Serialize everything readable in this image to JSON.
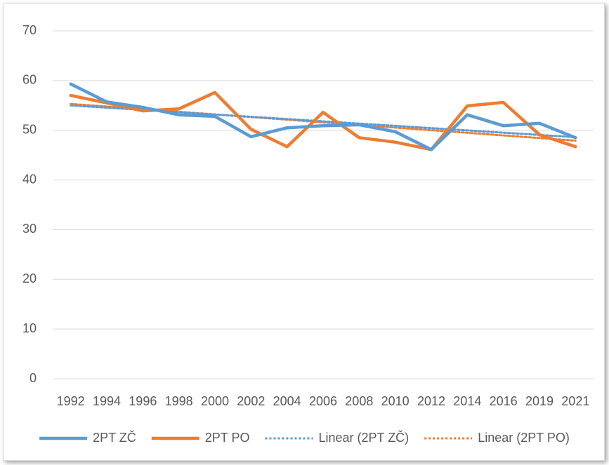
{
  "chart_data": {
    "type": "line",
    "categories": [
      "1992",
      "1994",
      "1996",
      "1998",
      "2000",
      "2002",
      "2004",
      "2006",
      "2008",
      "2010",
      "2012",
      "2014",
      "2016",
      "2019",
      "2021"
    ],
    "series": [
      {
        "name": "2PT ZČ",
        "color": "#5b9bd5",
        "style": "solid",
        "values": [
          59.3,
          55.7,
          54.6,
          53.1,
          52.8,
          48.7,
          50.5,
          50.9,
          51.1,
          49.7,
          46.1,
          53.1,
          50.9,
          51.4,
          48.5
        ]
      },
      {
        "name": "2PT PO",
        "color": "#ed7d31",
        "style": "solid",
        "values": [
          57.0,
          55.5,
          53.9,
          54.3,
          57.6,
          50.2,
          46.7,
          53.6,
          48.5,
          47.6,
          46.1,
          54.9,
          55.6,
          49.1,
          46.7
        ]
      },
      {
        "name": "Linear (2PT ZČ)",
        "color": "#5b9bd5",
        "style": "dotted",
        "values": [
          55.0,
          54.54,
          54.09,
          53.63,
          53.17,
          52.71,
          52.26,
          51.8,
          51.34,
          50.89,
          50.43,
          49.97,
          49.51,
          49.06,
          48.6
        ]
      },
      {
        "name": "Linear (2PT PO)",
        "color": "#ed7d31",
        "style": "dotted",
        "values": [
          55.3,
          54.77,
          54.24,
          53.71,
          53.19,
          52.66,
          52.13,
          51.6,
          51.07,
          50.54,
          50.01,
          49.49,
          48.96,
          48.43,
          47.9
        ]
      }
    ],
    "ylim": [
      0,
      70
    ],
    "yticks": [
      0,
      10,
      20,
      30,
      40,
      50,
      60,
      70
    ],
    "grid": true,
    "legend": "bottom"
  }
}
